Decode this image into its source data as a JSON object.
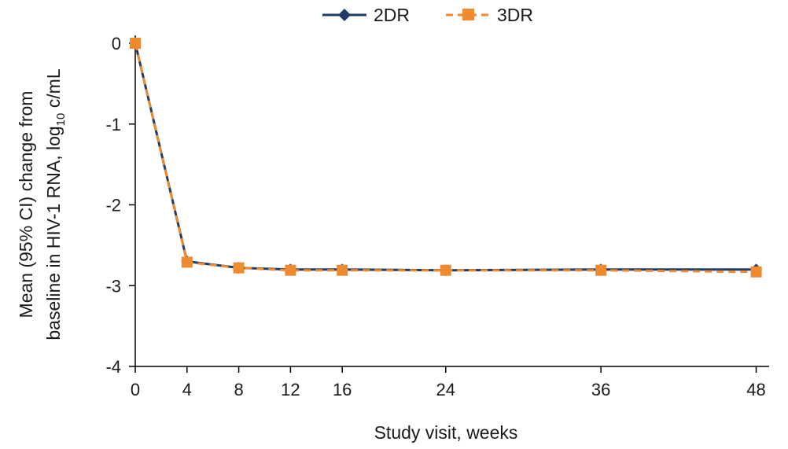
{
  "chart_data": {
    "type": "line",
    "x": [
      0,
      4,
      8,
      12,
      16,
      24,
      36,
      48
    ],
    "xticks": [
      0,
      4,
      8,
      12,
      16,
      24,
      36,
      48
    ],
    "xlim": [
      0,
      49
    ],
    "ylim": [
      -4,
      0
    ],
    "yticks": [
      0,
      -1,
      -2,
      -3,
      -4
    ],
    "xlabel": "Study visit, weeks",
    "ylabel_line1": "Mean (95% CI) change from",
    "ylabel_line2_prefix": "baseline in HIV-1 RNA, log",
    "ylabel_line2_sub": "10",
    "ylabel_line2_suffix": " c/mL",
    "legend_position": "top-center",
    "grid": false,
    "series": [
      {
        "name": "2DR",
        "values": [
          0,
          -2.7,
          -2.78,
          -2.8,
          -2.8,
          -2.81,
          -2.8,
          -2.8
        ],
        "color": "#1f3d6b",
        "marker": "diamond",
        "line_style": "solid"
      },
      {
        "name": "3DR",
        "values": [
          0,
          -2.71,
          -2.78,
          -2.81,
          -2.81,
          -2.81,
          -2.81,
          -2.83
        ],
        "color": "#f08a2e",
        "marker": "square",
        "line_style": "dashed"
      }
    ]
  }
}
